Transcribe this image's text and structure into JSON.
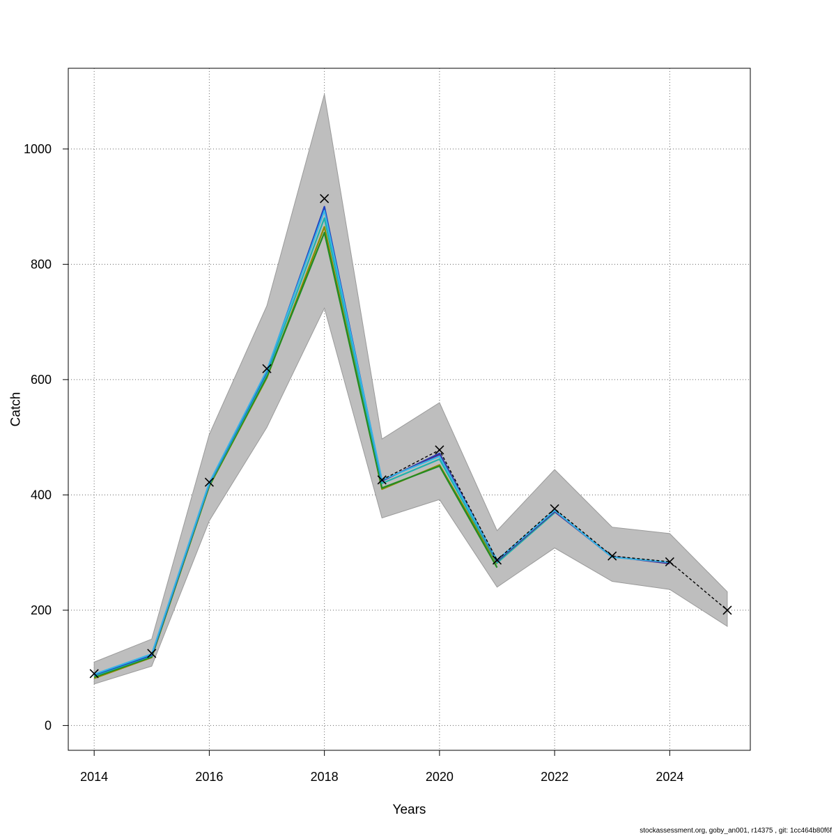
{
  "chart_data": {
    "type": "line",
    "title": "",
    "xlabel": "Years",
    "ylabel": "Catch",
    "xlim": [
      2013.55,
      2025.4
    ],
    "ylim": [
      -43,
      1140
    ],
    "x_ticks": [
      2014,
      2016,
      2018,
      2020,
      2022,
      2024
    ],
    "y_ticks": [
      0,
      200,
      400,
      600,
      800,
      1000
    ],
    "grid": true,
    "x": [
      2014,
      2015,
      2016,
      2017,
      2018,
      2019,
      2020,
      2021,
      2022,
      2023,
      2024,
      2025
    ],
    "observed": [
      90,
      125,
      422,
      619,
      914,
      426,
      478,
      287,
      376,
      294,
      284,
      200
    ],
    "band": {
      "x": [
        2014,
        2015,
        2016,
        2017,
        2018,
        2019,
        2020,
        2021,
        2022,
        2023,
        2024,
        2025
      ],
      "lower": [
        72,
        103,
        355,
        517,
        724,
        360,
        392,
        240,
        308,
        250,
        236,
        172
      ],
      "upper": [
        110,
        150,
        505,
        728,
        1095,
        497,
        560,
        338,
        444,
        344,
        333,
        232
      ]
    },
    "series": [
      {
        "color": "#8b8b00",
        "x": [
          2014,
          2015,
          2016,
          2017,
          2018,
          2019,
          2020,
          2021
        ],
        "values": [
          82,
          118,
          415,
          603,
          865,
          410,
          452,
          280
        ]
      },
      {
        "color": "#228b22",
        "x": [
          2014,
          2015,
          2016,
          2017,
          2018,
          2019,
          2020,
          2021
        ],
        "values": [
          84,
          119,
          416,
          605,
          855,
          412,
          450,
          274
        ]
      },
      {
        "color": "#20b2aa",
        "x": [
          2014,
          2015,
          2016,
          2017,
          2018,
          2019,
          2020,
          2021,
          2022
        ],
        "values": [
          86,
          121,
          418,
          610,
          880,
          420,
          462,
          282,
          369
        ]
      },
      {
        "color": "#1e3fbf",
        "x": [
          2014,
          2015,
          2016,
          2017,
          2018,
          2019,
          2020,
          2021,
          2022,
          2023
        ],
        "values": [
          88,
          122,
          420,
          614,
          900,
          424,
          472,
          286,
          372,
          292
        ]
      },
      {
        "color": "#4b2a8c",
        "x": [
          2019,
          2020,
          2021,
          2022,
          2023,
          2024
        ],
        "values": [
          425,
          470,
          285,
          371,
          293,
          281
        ]
      },
      {
        "color": "#36b4e6",
        "x": [
          2014,
          2015,
          2016,
          2017,
          2018,
          2019,
          2020,
          2021,
          2022,
          2023,
          2024
        ],
        "values": [
          89,
          124,
          421,
          616,
          893,
          426,
          467,
          287,
          373,
          292,
          283
        ]
      }
    ],
    "observed_line": {
      "x": [
        2019,
        2020,
        2021,
        2022,
        2023,
        2024,
        2025
      ],
      "values": [
        426,
        478,
        287,
        376,
        294,
        284,
        200
      ]
    },
    "colors": {
      "band": "#bebebe",
      "band_edge": "#9a9a9a",
      "grid": "#666666",
      "marker": "#000000"
    }
  },
  "footer": "stockassessment.org, goby_an001, r14375 , git: 1cc464b80f6f"
}
